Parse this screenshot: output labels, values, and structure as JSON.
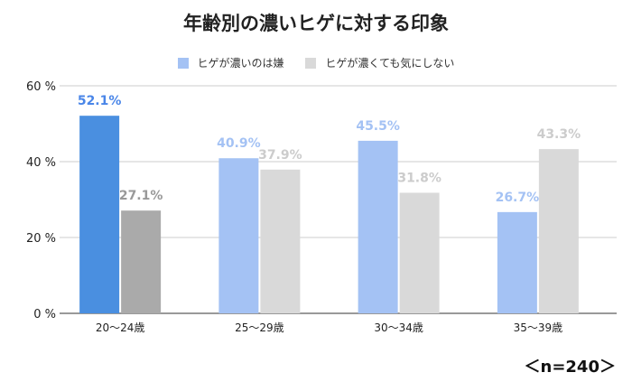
{
  "chart_data": {
    "type": "bar",
    "title": "年齢別の濃いヒゲに対する印象",
    "categories": [
      "20〜24歳",
      "25〜29歳",
      "30〜34歳",
      "35〜39歳"
    ],
    "series": [
      {
        "name": "ヒゲが濃いのは嫌",
        "values": [
          52.1,
          40.9,
          45.5,
          26.7
        ],
        "labels": [
          "52.1%",
          "40.9%",
          "45.5%",
          "26.7%"
        ],
        "color": "#a4c2f4",
        "highlight_color": "#4a8fe0",
        "label_color": "#a4c2f4",
        "highlight_label_color": "#4a86e8"
      },
      {
        "name": "ヒゲが濃くても気にしない",
        "values": [
          27.1,
          37.9,
          31.8,
          43.3
        ],
        "labels": [
          "27.1%",
          "37.9%",
          "31.8%",
          "43.3%"
        ],
        "color": "#d9d9d9",
        "highlight_color": "#aaaaaa",
        "label_color": "#cccccc",
        "highlight_label_color": "#999999"
      }
    ],
    "highlight_category": 0,
    "ylim": [
      0,
      60
    ],
    "yticks": [
      0,
      20,
      40,
      60
    ],
    "ytick_labels": [
      "0 %",
      "20 %",
      "40 %",
      "60 %"
    ],
    "legend": "top",
    "grid": false,
    "note": "＜n=240＞"
  }
}
